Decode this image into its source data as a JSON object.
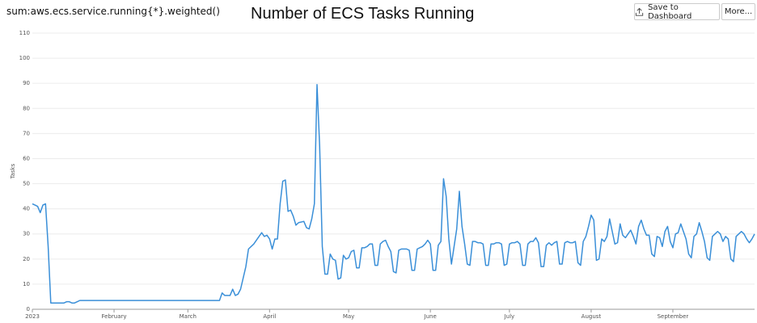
{
  "chart_data": {
    "type": "line",
    "query": "sum:aws.ecs.service.running{*}.weighted()",
    "title": "Number of ECS Tasks Running",
    "buttons": [
      "Save to Dashboard",
      "More..."
    ],
    "y_label": "Tasks",
    "xlim": [
      0,
      274
    ],
    "xticks": [
      {
        "value": 0,
        "label": "2023"
      },
      {
        "value": 31,
        "label": "February"
      },
      {
        "value": 59,
        "label": "March"
      },
      {
        "value": 90,
        "label": "April"
      },
      {
        "value": 120,
        "label": "May"
      },
      {
        "value": 151,
        "label": "June"
      },
      {
        "value": 181,
        "label": "July"
      },
      {
        "value": 212,
        "label": "August"
      },
      {
        "value": 243,
        "label": "September"
      }
    ],
    "ylim": [
      0,
      110
    ],
    "yticks": [
      0,
      10,
      20,
      30,
      40,
      50,
      60,
      70,
      80,
      90,
      100,
      110
    ],
    "grid": true,
    "color": "#3a8fd8",
    "x": [
      0,
      1,
      2,
      3,
      4,
      5,
      6,
      7,
      10,
      12,
      13,
      14,
      15,
      16,
      17,
      18,
      70,
      71,
      72,
      73,
      75,
      76,
      77,
      78,
      79,
      81,
      82,
      84,
      86,
      87,
      88,
      89,
      90,
      91,
      92,
      93,
      94,
      95,
      96,
      97,
      98,
      99,
      100,
      101,
      103,
      104,
      105,
      106,
      107,
      108,
      109,
      110,
      111,
      112,
      113,
      114,
      115,
      116,
      117,
      118,
      119,
      120,
      121,
      122,
      123,
      124,
      125,
      126,
      127,
      128,
      129,
      130,
      131,
      132,
      133,
      134,
      135,
      136,
      137,
      138,
      139,
      140,
      141,
      142,
      143,
      144,
      145,
      146,
      147,
      148,
      149,
      150,
      151,
      152,
      153,
      154,
      155,
      156,
      157,
      158,
      159,
      160,
      161,
      162,
      163,
      164,
      165,
      166,
      167,
      168,
      169,
      170,
      171,
      172,
      173,
      174,
      175,
      176,
      177,
      178,
      179,
      180,
      181,
      182,
      183,
      184,
      185,
      186,
      187,
      188,
      189,
      190,
      191,
      192,
      193,
      194,
      195,
      196,
      197,
      198,
      199,
      200,
      201,
      202,
      203,
      204,
      205,
      206,
      207,
      208,
      209,
      210,
      211,
      212,
      213,
      214,
      215,
      216,
      217,
      218,
      219,
      220,
      221,
      222,
      223,
      224,
      225,
      226,
      227,
      228,
      229,
      230,
      231,
      232,
      233,
      234,
      235,
      236,
      237,
      238,
      239,
      240,
      241,
      242,
      243,
      244,
      245,
      246,
      247,
      248,
      249,
      250,
      251,
      252,
      253,
      254,
      255,
      256,
      257,
      258,
      259,
      260,
      261,
      262,
      263,
      264,
      265,
      266,
      267,
      268,
      269,
      270,
      271,
      272,
      273,
      274
    ],
    "values": [
      42,
      41.5,
      41,
      38.5,
      41.5,
      42,
      25,
      2.5,
      2.5,
      2.5,
      3,
      3,
      2.5,
      2.5,
      3,
      3.5,
      3.5,
      3.5,
      6.5,
      5.5,
      5.5,
      8,
      5.5,
      6,
      8,
      17,
      24,
      26,
      29,
      30.5,
      29,
      29.5,
      28,
      24,
      28,
      28,
      42,
      51,
      51.5,
      39,
      39.5,
      37,
      33.5,
      34.5,
      35,
      32.5,
      32,
      36,
      42,
      89.5,
      65,
      25,
      14,
      14,
      22,
      20,
      19.5,
      12,
      12.5,
      21.5,
      20,
      20.5,
      23,
      23.5,
      16.5,
      16.5,
      24.5,
      24.5,
      25,
      26,
      26,
      17.5,
      17.5,
      26,
      27,
      27.5,
      25,
      23,
      15,
      14.5,
      23.5,
      24,
      24,
      24,
      23.5,
      15.5,
      15.5,
      24,
      24.5,
      25,
      26,
      27.5,
      26,
      15.5,
      15.5,
      25.5,
      27,
      52,
      45,
      28,
      18,
      25,
      32,
      47,
      33,
      26,
      18,
      17.5,
      27,
      27,
      26.5,
      26.5,
      26,
      17.5,
      17.5,
      26,
      26,
      26.5,
      26.5,
      26,
      17.5,
      18,
      26,
      26.5,
      26.5,
      27,
      26,
      17.5,
      17.5,
      26,
      27,
      27,
      28.5,
      26.5,
      17,
      17,
      25.5,
      26.5,
      25.5,
      26.5,
      27,
      18,
      18,
      26.5,
      27,
      26.5,
      26.5,
      27,
      18.5,
      17.5,
      27,
      29,
      33,
      37.5,
      35.5,
      19.5,
      20,
      28,
      27,
      29,
      36,
      31,
      26,
      26.5,
      34,
      29.5,
      28.5,
      30,
      31.5,
      29,
      26,
      33,
      35.5,
      32,
      29.5,
      29.5,
      22,
      21,
      29,
      28.5,
      25,
      31,
      33,
      27,
      24.5,
      30,
      30.5,
      34,
      31,
      28,
      22,
      20.5,
      29,
      30,
      34.5,
      31,
      27,
      20.5,
      19.5,
      29,
      30,
      31,
      30,
      27,
      29,
      28,
      20,
      19,
      29,
      30,
      31,
      30,
      28,
      26.5,
      28,
      30
    ]
  }
}
